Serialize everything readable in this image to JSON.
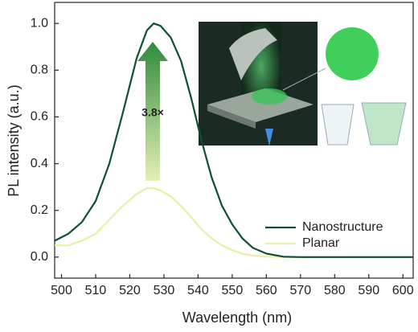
{
  "chart_data": {
    "type": "line",
    "x": [
      498,
      502,
      506,
      510,
      514,
      518,
      522,
      525,
      527,
      529,
      532,
      535,
      538,
      541,
      544,
      547,
      550,
      553,
      556,
      560,
      565,
      570,
      580,
      590,
      603
    ],
    "series": [
      {
        "name": "Nanostructure",
        "color": "#0f4f31",
        "values": [
          0.07,
          0.1,
          0.15,
          0.24,
          0.4,
          0.62,
          0.85,
          0.97,
          1.0,
          0.99,
          0.94,
          0.84,
          0.68,
          0.5,
          0.34,
          0.22,
          0.14,
          0.08,
          0.04,
          0.015,
          0.002,
          0,
          0,
          0,
          0
        ]
      },
      {
        "name": "Planar",
        "color": "#e8f0a6",
        "values": [
          0.05,
          0.05,
          0.07,
          0.1,
          0.16,
          0.22,
          0.27,
          0.295,
          0.295,
          0.285,
          0.26,
          0.22,
          0.17,
          0.12,
          0.08,
          0.05,
          0.03,
          0.015,
          0.007,
          0.002,
          0,
          0,
          0,
          0,
          0
        ]
      }
    ],
    "xlabel": "Wavelength (nm)",
    "ylabel": "PL intensity (a.u.)",
    "annotation": "3.8×",
    "xlim": [
      498,
      603
    ],
    "xticks": [
      500,
      510,
      520,
      530,
      540,
      550,
      560,
      570,
      580,
      590,
      600
    ],
    "ylim": [
      -0.09,
      1.09
    ],
    "yticks": [
      {
        "value": 0,
        "label": "0.0"
      },
      0.2,
      0.4,
      0.6,
      0.8,
      {
        "value": 1,
        "label": "1.0"
      }
    ],
    "legend": "lower right"
  }
}
